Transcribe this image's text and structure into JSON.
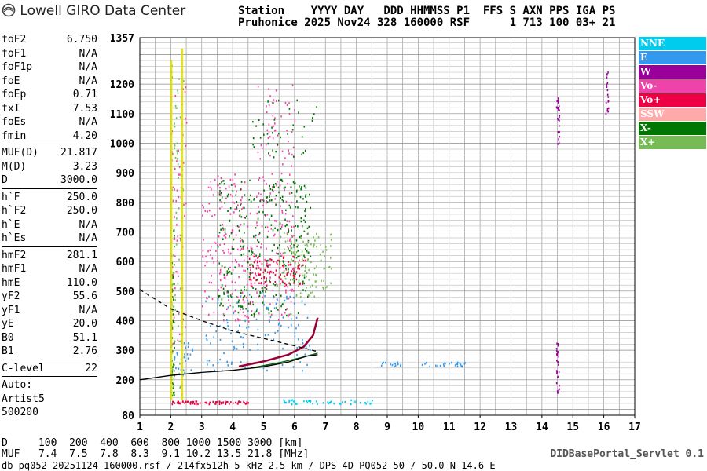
{
  "logo": {
    "text": "Lowell GIRO Data Center",
    "icon": "lowell-logo-icon"
  },
  "header": {
    "line1": "Station    YYYY DAY   DDD HHMMSS P1  FFS S AXN PPS IGA PS",
    "line2": "Pruhonice 2025 Nov24 328 160000 RSF      1 713 100 03+ 21"
  },
  "params": {
    "group1": [
      {
        "label": "foF2",
        "value": "6.750"
      },
      {
        "label": "foF1",
        "value": "N/A"
      },
      {
        "label": "foF1p",
        "value": "N/A"
      },
      {
        "label": "foE",
        "value": "N/A"
      },
      {
        "label": "foEp",
        "value": "0.71"
      },
      {
        "label": "fxI",
        "value": "7.53"
      },
      {
        "label": "foEs",
        "value": "N/A"
      },
      {
        "label": "fmin",
        "value": "4.20"
      }
    ],
    "group2": [
      {
        "label": "MUF(D)",
        "value": "21.817"
      },
      {
        "label": "M(D)",
        "value": "3.23"
      },
      {
        "label": "D",
        "value": "3000.0"
      }
    ],
    "group3": [
      {
        "label": "h`F",
        "value": "250.0"
      },
      {
        "label": "h`F2",
        "value": "250.0"
      },
      {
        "label": "h`E",
        "value": "N/A"
      },
      {
        "label": "h`Es",
        "value": "N/A"
      }
    ],
    "group4": [
      {
        "label": "hmF2",
        "value": "281.1"
      },
      {
        "label": "hmF1",
        "value": "N/A"
      },
      {
        "label": "hmE",
        "value": "110.0"
      },
      {
        "label": "yF2",
        "value": "55.6"
      },
      {
        "label": "yF1",
        "value": "N/A"
      },
      {
        "label": "yE",
        "value": "20.0"
      },
      {
        "label": "B0",
        "value": "51.1"
      },
      {
        "label": "B1",
        "value": "2.76"
      }
    ],
    "group5": [
      {
        "label": "C-level",
        "value": "22"
      }
    ],
    "auto": [
      "Auto:",
      "Artist5",
      "500200"
    ]
  },
  "legend": [
    {
      "label": "NNE",
      "color": "#00ccee"
    },
    {
      "label": "E",
      "color": "#3399ee"
    },
    {
      "label": "W",
      "color": "#990099"
    },
    {
      "label": "Vo-",
      "color": "#ee44aa"
    },
    {
      "label": "Vo+",
      "color": "#ee0044"
    },
    {
      "label": "SSW",
      "color": "#ffaaaa"
    },
    {
      "label": "X-",
      "color": "#007700"
    },
    {
      "label": "X+",
      "color": "#77bb55"
    }
  ],
  "footer": {
    "d_line": "D     100  200  400  600  800 1000 1500 3000 [km]",
    "muf_line": "MUF   7.4  7.5  7.8  8.3  9.1 10.2 13.5 21.8 [MHz]",
    "servlet": "DIDBasePortal_Servlet 0.1",
    "file_line": "db pq052 20251124 160000.rsf / 214fx512h 5 kHz 2.5 km / DPS-4D PQ052 50 / 50.0 N 14.6 E"
  },
  "chart_data": {
    "type": "scatter",
    "title": "",
    "xlabel": "",
    "ylabel": "",
    "xlim": [
      1,
      17
    ],
    "ylim": [
      80,
      1357
    ],
    "x_ticks": [
      1,
      2,
      3,
      4,
      5,
      6,
      7,
      8,
      9,
      10,
      11,
      12,
      13,
      14,
      15,
      16,
      17
    ],
    "y_ticks": [
      80,
      200,
      300,
      400,
      500,
      600,
      700,
      800,
      900,
      1000,
      1100,
      1200,
      1357
    ],
    "grid": true,
    "traces": [
      {
        "name": "O-trace",
        "color": "#990033",
        "points": [
          [
            4.2,
            245
          ],
          [
            5.0,
            262
          ],
          [
            5.8,
            285
          ],
          [
            6.3,
            312
          ],
          [
            6.6,
            350
          ],
          [
            6.75,
            410
          ]
        ]
      },
      {
        "name": "X-trace",
        "color": "#006600",
        "points": [
          [
            4.6,
            240
          ],
          [
            5.5,
            258
          ],
          [
            6.2,
            275
          ],
          [
            6.75,
            290
          ]
        ]
      },
      {
        "name": "profile",
        "color": "#000000",
        "points": [
          [
            1.0,
            200
          ],
          [
            2.0,
            215
          ],
          [
            3.0,
            225
          ],
          [
            4.0,
            232
          ],
          [
            5.0,
            244
          ],
          [
            5.8,
            260
          ],
          [
            6.4,
            280
          ],
          [
            6.75,
            285
          ]
        ]
      },
      {
        "name": "dashed-profile",
        "color": "#000000",
        "points": [
          [
            1.0,
            505
          ],
          [
            2.0,
            440
          ],
          [
            3.0,
            400
          ],
          [
            4.0,
            365
          ],
          [
            5.0,
            340
          ],
          [
            5.8,
            320
          ],
          [
            6.4,
            305
          ],
          [
            6.75,
            295
          ]
        ]
      }
    ],
    "clusters": [
      {
        "series": "X-",
        "x": [
          2.0,
          2.1
        ],
        "y": [
          130,
          720
        ],
        "n": 60
      },
      {
        "series": "X+",
        "x": [
          2.0,
          2.4
        ],
        "y": [
          150,
          1300
        ],
        "n": 80
      },
      {
        "series": "Vo-",
        "x": [
          2.0,
          2.5
        ],
        "y": [
          280,
          1200
        ],
        "n": 60
      },
      {
        "series": "Vo-",
        "x": [
          3.0,
          6.0
        ],
        "y": [
          400,
          900
        ],
        "n": 320
      },
      {
        "series": "X-",
        "x": [
          3.5,
          6.5
        ],
        "y": [
          420,
          880
        ],
        "n": 320
      },
      {
        "series": "X+",
        "x": [
          5.5,
          7.2
        ],
        "y": [
          480,
          700
        ],
        "n": 120
      },
      {
        "series": "Vo+",
        "x": [
          4.5,
          6.4
        ],
        "y": [
          520,
          620
        ],
        "n": 100
      },
      {
        "series": "E",
        "x": [
          3.0,
          6.5
        ],
        "y": [
          230,
          500
        ],
        "n": 120
      },
      {
        "series": "Vo-",
        "x": [
          4.8,
          6.0
        ],
        "y": [
          900,
          1200
        ],
        "n": 50
      },
      {
        "series": "X-",
        "x": [
          4.5,
          6.8
        ],
        "y": [
          950,
          1150
        ],
        "n": 40
      },
      {
        "series": "W",
        "x": [
          14.45,
          14.55
        ],
        "y": [
          980,
          1180
        ],
        "n": 25
      },
      {
        "series": "W",
        "x": [
          14.45,
          14.55
        ],
        "y": [
          150,
          330
        ],
        "n": 30
      },
      {
        "series": "W",
        "x": [
          16.05,
          16.15
        ],
        "y": [
          1100,
          1260
        ],
        "n": 20
      },
      {
        "series": "E",
        "x": [
          10.0,
          11.5
        ],
        "y": [
          248,
          262
        ],
        "n": 25
      },
      {
        "series": "E",
        "x": [
          8.7,
          9.5
        ],
        "y": [
          248,
          262
        ],
        "n": 15
      },
      {
        "series": "Vo+",
        "x": [
          2.0,
          4.5
        ],
        "y": [
          120,
          130
        ],
        "n": 70
      },
      {
        "series": "NNE",
        "x": [
          5.5,
          8.5
        ],
        "y": [
          120,
          135
        ],
        "n": 50
      },
      {
        "series": "E",
        "x": [
          2.0,
          2.7
        ],
        "y": [
          200,
          330
        ],
        "n": 30
      }
    ]
  }
}
